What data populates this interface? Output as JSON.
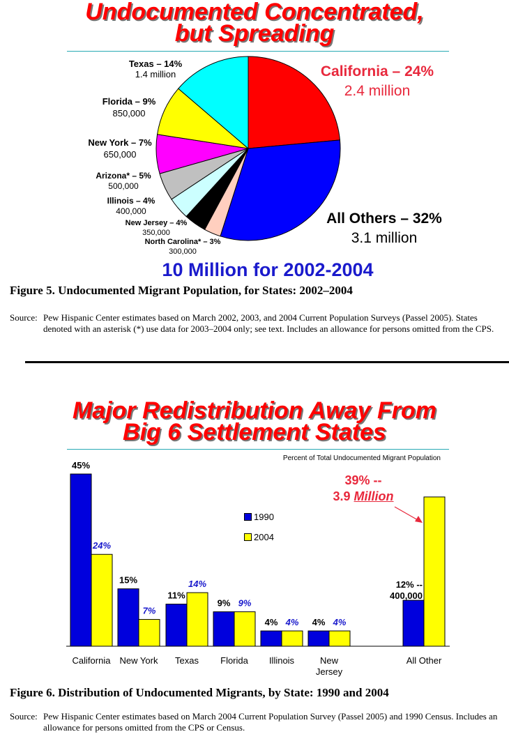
{
  "top": {
    "title_line1": "Undocumented Concentrated,",
    "title_line2": "but Spreading",
    "subtitle": "10 Million for 2002-2004",
    "caption": "Figure 5.  Undocumented Migrant Population, for States: 2002–2004",
    "source_label": "Source:",
    "source_text": "Pew Hispanic Center estimates based on March 2002, 2003, and 2004 Current Population Surveys (Passel 2005).  States denoted with an asterisk (*) use data for 2003–2004 only; see text.  Includes an allowance for persons omitted from the CPS."
  },
  "bottom": {
    "title_line1": "Major Redistribution Away From",
    "title_line2": "Big 6 Settlement States",
    "caption": "Figure 6.  Distribution of Undocumented Migrants, by State: 1990 and 2004",
    "source_label": "Source:",
    "source_text": "Pew Hispanic Center estimates based on March 2004 Current Population Survey (Passel 2005) and 1990 Census.  Includes an allowance for persons omitted from the CPS or Census."
  },
  "colors": {
    "title_red": "#ff0000",
    "blue_1990": "#0000dd",
    "yellow_2004": "#ffff00",
    "label_blue": "#1a1acc",
    "annotation_red": "#e8283c"
  },
  "chart_data": [
    {
      "type": "pie",
      "title": "Undocumented Concentrated, but Spreading",
      "slices": [
        {
          "name": "California",
          "pct": 24,
          "label": "California – 24%",
          "amount": "2.4 million",
          "color": "#ff0000"
        },
        {
          "name": "All Others",
          "pct": 32,
          "label": "All Others – 32%",
          "amount": "3.1 million",
          "color": "#0000ff"
        },
        {
          "name": "North Carolina*",
          "pct": 3,
          "label": "North Carolina* – 3%",
          "amount": "300,000",
          "color": "#ffcfbf"
        },
        {
          "name": "New Jersey",
          "pct": 4,
          "label": "New Jersey – 4%",
          "amount": "350,000",
          "color": "#000000"
        },
        {
          "name": "Illinois",
          "pct": 4,
          "label": "Illinois – 4%",
          "amount": "400,000",
          "color": "#ccffff"
        },
        {
          "name": "Arizona*",
          "pct": 5,
          "label": "Arizona* – 5%",
          "amount": "500,000",
          "color": "#c0c0c0"
        },
        {
          "name": "New York",
          "pct": 7,
          "label": "New York – 7%",
          "amount": "650,000",
          "color": "#ff00ff"
        },
        {
          "name": "Florida",
          "pct": 9,
          "label": "Florida – 9%",
          "amount": "850,000",
          "color": "#ffff00"
        },
        {
          "name": "Texas",
          "pct": 14,
          "label": "Texas – 14%",
          "amount": "1.4 million",
          "color": "#00ffff"
        }
      ],
      "subtitle": "10 Million for 2002-2004"
    },
    {
      "type": "bar",
      "title": "Major Redistribution Away From Big 6 Settlement States",
      "note": "Percent of Total Undocumented Migrant Population",
      "categories": [
        "California",
        "New York",
        "Texas",
        "Florida",
        "Illinois",
        "New Jersey",
        "All Other"
      ],
      "category_lines": [
        [
          "California"
        ],
        [
          "New York"
        ],
        [
          "Texas"
        ],
        [
          "Florida"
        ],
        [
          "Illinois"
        ],
        [
          "New",
          "Jersey"
        ],
        [
          "All Other"
        ]
      ],
      "series": [
        {
          "name": "1990",
          "values": [
            45,
            15,
            11,
            9,
            4,
            4,
            12
          ],
          "labels": [
            "45%",
            "15%",
            "11%",
            "9%",
            "4%",
            "4%",
            ""
          ]
        },
        {
          "name": "2004",
          "values": [
            24,
            7,
            14,
            9,
            4,
            4,
            39
          ],
          "labels": [
            "24%",
            "7%",
            "14%",
            "9%",
            "4%",
            "4%",
            ""
          ]
        }
      ],
      "all_other_1990_label_line1": "12% --",
      "all_other_1990_label_line2": "400,000",
      "annotation_line1": "39% --",
      "annotation_line2_prefix": "3.9 ",
      "annotation_line2_emph": "Million",
      "ylim": [
        0,
        47
      ],
      "xlabel": "",
      "ylabel": ""
    }
  ]
}
